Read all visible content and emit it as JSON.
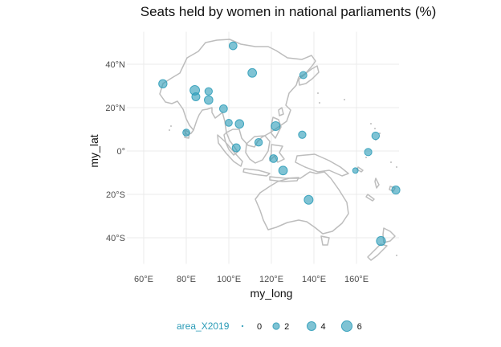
{
  "title": "Seats held by women in national parliaments (%)",
  "x_axis": {
    "title": "my_long",
    "ticks": [
      "60°E",
      "80°E",
      "100°E",
      "120°E",
      "140°E",
      "160°E"
    ]
  },
  "y_axis": {
    "title": "my_lat",
    "ticks": [
      "40°N",
      "20°N",
      "0°",
      "20°S",
      "40°S"
    ]
  },
  "legend": {
    "title": "area_X2019",
    "labels": [
      "0",
      "2",
      "4",
      "6"
    ],
    "size_values": [
      0,
      2,
      4,
      6
    ],
    "position": "bottom"
  },
  "colors": {
    "bubble": "#2a9bb7",
    "coast": "#bdbdbd",
    "grid": "#ebebeb",
    "legend_title": "#2a9bb7"
  },
  "chart_data": {
    "type": "scatter",
    "title": "Seats held by women in national parliaments (%)",
    "xlabel": "my_long",
    "ylabel": "my_lat",
    "xlim": [
      52,
      180
    ],
    "ylim": [
      -52,
      55
    ],
    "grid": true,
    "legend_position": "bottom",
    "size_variable": "area_X2019",
    "points": [
      {
        "lon": 102,
        "lat": 48.5,
        "size": 3.0
      },
      {
        "lon": 111,
        "lat": 36,
        "size": 3.8
      },
      {
        "lon": 135,
        "lat": 35,
        "size": 2.5
      },
      {
        "lon": 69,
        "lat": 31,
        "size": 3.5
      },
      {
        "lon": 84,
        "lat": 28,
        "size": 4.8
      },
      {
        "lon": 90.5,
        "lat": 27.5,
        "size": 2.7
      },
      {
        "lon": 84.5,
        "lat": 25,
        "size": 3.2
      },
      {
        "lon": 90.5,
        "lat": 23.5,
        "size": 3.7
      },
      {
        "lon": 97.5,
        "lat": 19.5,
        "size": 3.0
      },
      {
        "lon": 100,
        "lat": 13,
        "size": 2.3
      },
      {
        "lon": 105,
        "lat": 12.5,
        "size": 3.7
      },
      {
        "lon": 122,
        "lat": 11.5,
        "size": 4.0
      },
      {
        "lon": 80,
        "lat": 8.5,
        "size": 2.3
      },
      {
        "lon": 134.5,
        "lat": 7.5,
        "size": 2.7
      },
      {
        "lon": 114,
        "lat": 4,
        "size": 2.8
      },
      {
        "lon": 103.5,
        "lat": 1.5,
        "size": 3.2
      },
      {
        "lon": 169,
        "lat": 7,
        "size": 2.8
      },
      {
        "lon": 165.5,
        "lat": -0.5,
        "size": 2.6
      },
      {
        "lon": 121,
        "lat": -3.5,
        "size": 3.0
      },
      {
        "lon": 125.5,
        "lat": -9,
        "size": 3.8
      },
      {
        "lon": 159.5,
        "lat": -9,
        "size": 1.3
      },
      {
        "lon": 137.5,
        "lat": -22.5,
        "size": 4.0
      },
      {
        "lon": 178.5,
        "lat": -18,
        "size": 3.3
      },
      {
        "lon": 171.5,
        "lat": -41.5,
        "size": 4.2
      }
    ]
  }
}
